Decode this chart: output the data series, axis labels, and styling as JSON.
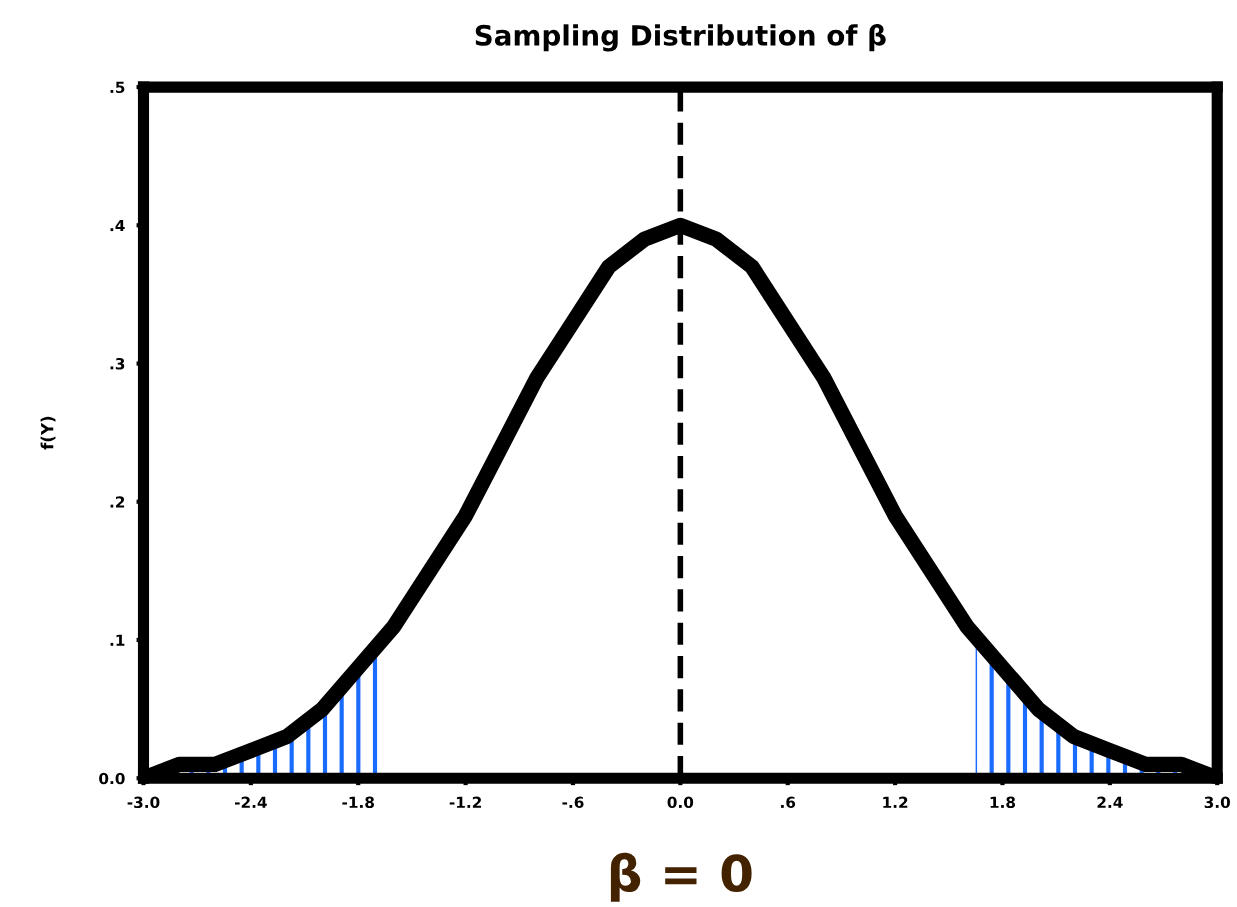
{
  "chart_data": {
    "type": "line",
    "title": "Sampling Distribution of β",
    "xlabel": "β = 0",
    "ylabel": "f(Y)",
    "xlim": [
      -3.0,
      3.0
    ],
    "ylim": [
      0.0,
      0.5
    ],
    "xticks": [
      {
        "value": -3.0,
        "label": "-3.0"
      },
      {
        "value": -2.4,
        "label": "-2.4"
      },
      {
        "value": -1.8,
        "label": "-1.8"
      },
      {
        "value": -1.2,
        "label": "-1.2"
      },
      {
        "value": -0.6,
        "label": "-.6"
      },
      {
        "value": 0.0,
        "label": "0.0"
      },
      {
        "value": 0.6,
        "label": ".6"
      },
      {
        "value": 1.2,
        "label": "1.2"
      },
      {
        "value": 1.8,
        "label": "1.8"
      },
      {
        "value": 2.4,
        "label": "2.4"
      },
      {
        "value": 3.0,
        "label": "3.0"
      }
    ],
    "yticks": [
      {
        "value": 0.0,
        "label": "0.0"
      },
      {
        "value": 0.1,
        "label": ".1"
      },
      {
        "value": 0.2,
        "label": ".2"
      },
      {
        "value": 0.3,
        "label": ".3"
      },
      {
        "value": 0.4,
        "label": ".4"
      },
      {
        "value": 0.5,
        "label": ".5"
      }
    ],
    "series": [
      {
        "type": "area",
        "color": "#1a6cff",
        "x": [
          -3.0,
          -2.8,
          -2.6,
          -2.4,
          -2.2,
          -2.0,
          -1.8,
          -1.65
        ],
        "values": [
          0.0,
          0.01,
          0.01,
          0.02,
          0.03,
          0.05,
          0.08,
          0.1
        ]
      },
      {
        "type": "area",
        "color": "#1a6cff",
        "x": [
          1.65,
          1.8,
          2.0,
          2.2,
          2.4,
          2.6,
          2.8,
          3.0
        ],
        "values": [
          0.1,
          0.08,
          0.05,
          0.03,
          0.02,
          0.01,
          0.01,
          0.0
        ]
      },
      {
        "color": "#000000",
        "x": [
          -3.0,
          -2.8,
          -2.6,
          -2.4,
          -2.2,
          -2.0,
          -1.8,
          -1.6,
          -1.4,
          -1.2,
          -1.0,
          -0.8,
          -0.6,
          -0.4,
          -0.2,
          0.0,
          0.2,
          0.4,
          0.6,
          0.8,
          1.0,
          1.2,
          1.4,
          1.6,
          1.8,
          2.0,
          2.2,
          2.4,
          2.6,
          2.8,
          3.0
        ],
        "values": [
          0.0,
          0.01,
          0.01,
          0.02,
          0.03,
          0.05,
          0.08,
          0.11,
          0.15,
          0.19,
          0.24,
          0.29,
          0.33,
          0.37,
          0.39,
          0.4,
          0.39,
          0.37,
          0.33,
          0.29,
          0.24,
          0.19,
          0.15,
          0.11,
          0.08,
          0.05,
          0.03,
          0.02,
          0.01,
          0.01,
          0.0
        ]
      }
    ],
    "ref_lines": [
      {
        "axis": "x",
        "value": 0.0,
        "color": "#000000",
        "line_style": "dashed"
      }
    ],
    "grid": false,
    "legend": false,
    "line_style": "solid"
  }
}
